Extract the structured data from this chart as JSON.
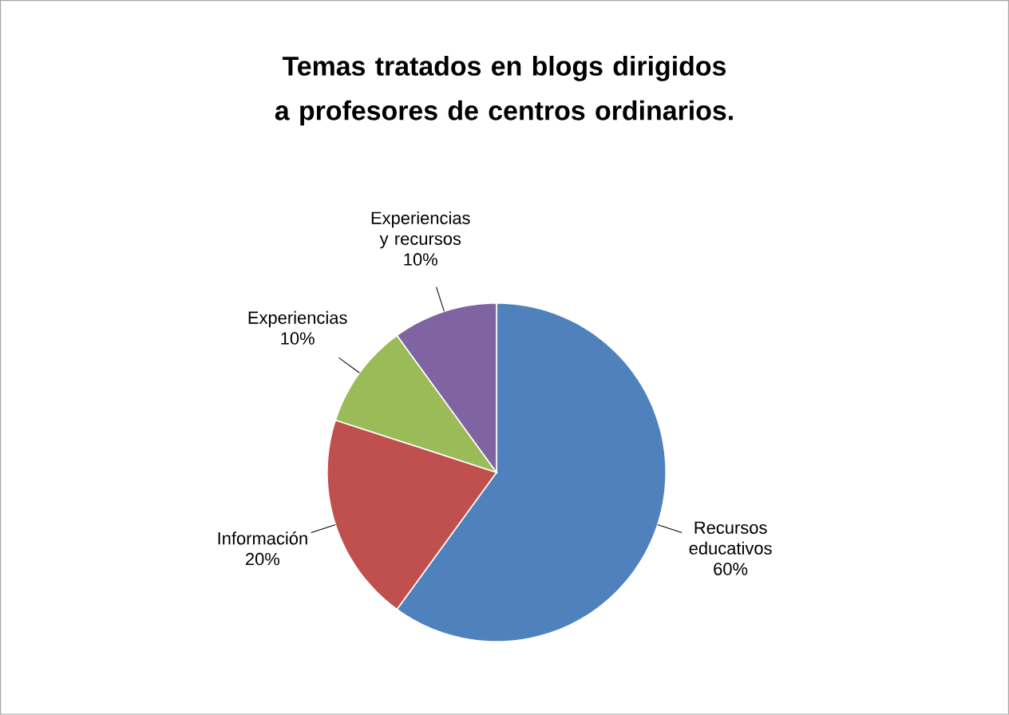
{
  "chart_data": {
    "type": "pie",
    "title": "Temas tratados en blogs dirigidos a profesores de centros ordinarios.",
    "categories": [
      "Recursos educativos",
      "Información",
      "Experiencias",
      "Experiencias y recursos"
    ],
    "values": [
      60,
      20,
      10,
      10
    ],
    "value_labels": [
      "60%",
      "20%",
      "10%",
      "10%"
    ],
    "colors": [
      "#4f81bd",
      "#c0504d",
      "#9bbb59",
      "#8064a2"
    ]
  }
}
